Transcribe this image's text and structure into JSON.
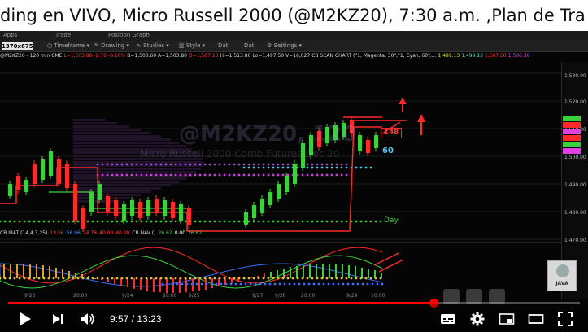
{
  "video": {
    "title": "ding en VIVO, Micro Russell 2000 (@M2KZ20), 7:30 a.m. ,Plan de Tra",
    "current_time": "9:57",
    "separator": " / ",
    "duration": "13:23",
    "progress": 0.744
  },
  "platform": {
    "tabs": [
      "Apps",
      "Trade",
      "Position Graph"
    ],
    "symbol_box": "1370x675",
    "toolbar": [
      "Timeframe",
      "Drawing",
      "Studies",
      "Style",
      "Settings"
    ],
    "toolbar_misc": [
      "Dat",
      "Dat"
    ]
  },
  "quote_line": [
    {
      "text": "@M2KZ20 - 120 min  CME",
      "color": "#dddddd"
    },
    {
      "text": "L=1,503.80",
      "color": "#ff3b3b"
    },
    {
      "text": "-2.70",
      "color": "#ff3b3b"
    },
    {
      "text": "-0.18%",
      "color": "#ff3b3b"
    },
    {
      "text": "B=1,503.60",
      "color": "#dddddd"
    },
    {
      "text": "A=1,503.80",
      "color": "#dddddd"
    },
    {
      "text": "O=1,507.10",
      "color": "#ff3b3b"
    },
    {
      "text": "Hi=1,513.80",
      "color": "#dddddd"
    },
    {
      "text": "Lo=1,497.50",
      "color": "#dddddd"
    },
    {
      "text": "V=16,027",
      "color": "#dddddd"
    },
    {
      "text": "CB  SCAN CHART (\"1, Magenta, 30\",\"1, Cyan, 60\",...",
      "color": "#dddddd"
    },
    {
      "text": "1,499.13",
      "color": "#e0e040"
    },
    {
      "text": "1,499.13",
      "color": "#40e0e0"
    },
    {
      "text": "1,507.60",
      "color": "#ff3b3b"
    },
    {
      "text": "1,506.36",
      "color": "#e040e0"
    }
  ],
  "watermark": {
    "symbol": "@M2KZ20, 120",
    "name": "Micro Russell 2000 Comb Futures Dec 20"
  },
  "chart_labels": {
    "sixty": "60",
    "day": "Day",
    "r_box": "148"
  },
  "price_axis": [
    "1,530.00",
    "1,520.00",
    "1,510.00",
    "1,500.00",
    "1,490.00",
    "1,480.00",
    "1,470.00"
  ],
  "indicator_line": [
    {
      "text": "CB IRAT (14,4,3,25)",
      "color": "#dddddd"
    },
    {
      "text": "18.56",
      "color": "#ff3b3b"
    },
    {
      "text": "56.06",
      "color": "#3b9bff"
    },
    {
      "text": "24.78",
      "color": "#ff3b3b"
    },
    {
      "text": "40.00",
      "color": "#ff3b3b"
    },
    {
      "text": "40.00",
      "color": "#ff3b3b"
    },
    {
      "text": "CB NAV ()",
      "color": "#dddddd"
    },
    {
      "text": "26.62",
      "color": "#3cd13c"
    },
    {
      "text": "0.00",
      "color": "#ffffff"
    },
    {
      "text": "26.62",
      "color": "#3cd13c"
    }
  ],
  "x_axis": [
    "9/23",
    "20:00",
    "9/24",
    "20:00",
    "9/25",
    "9/27",
    "9/28",
    "20:00",
    "9/29",
    "10:00"
  ],
  "java_badge": "JAVA",
  "colors": {
    "accent": "#ff0000",
    "bull": "#3cd13c",
    "bear": "#ff2a2a",
    "magenta": "#d040e0",
    "cyan": "#40c8f0"
  },
  "icons": [
    "play-icon",
    "next-icon",
    "volume-icon",
    "subtitles-icon",
    "settings-gear-icon",
    "miniplayer-icon",
    "theater-icon",
    "fullscreen-icon"
  ]
}
